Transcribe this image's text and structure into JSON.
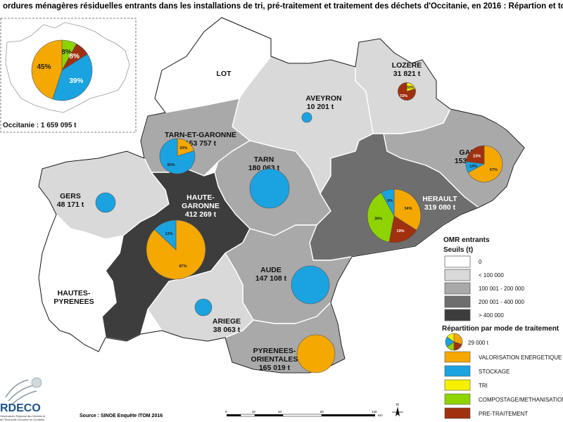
{
  "title": "ordures ménagères résiduelles entrants dans les installations de tri, pré-traitement et traitement des déchets d'Occitanie, en 2016 : Répartion et tonna",
  "colors": {
    "valorisation": "#f5a800",
    "stockage": "#1aa3e0",
    "tri": "#f5f000",
    "compostage": "#8fd400",
    "pretraitement": "#a1300f",
    "class0": "#ffffff",
    "class1": "#d9d9d9",
    "class2": "#a9a9a9",
    "class3": "#6e6e6e",
    "class4": "#3d3d3d"
  },
  "inset": {
    "total_label": "Occitanie : 1 659 095 t",
    "shares": {
      "valorisation": 45,
      "stockage": 39,
      "compostage": 8,
      "pretraitement": 8
    },
    "labels": [
      "45%",
      "39%",
      "8%",
      "8%"
    ]
  },
  "departments": {
    "lot": {
      "name": "LOT"
    },
    "aveyron": {
      "name": "AVEYRON",
      "tonnage": "10 201 t",
      "tonnage_value": 10201
    },
    "lozere": {
      "name": "LOZERE",
      "tonnage": "31 821 t",
      "tonnage_value": 31821,
      "pie_labels": [
        "20%",
        "72%"
      ]
    },
    "tarn_et_garonne": {
      "name": "TARN-ET-GARONNE",
      "tonnage": "153 757 t",
      "tonnage_value": 153757,
      "pie_labels": [
        "20%",
        "80%"
      ]
    },
    "tarn": {
      "name": "TARN",
      "tonnage": "180 063 t",
      "tonnage_value": 180063
    },
    "gard": {
      "name": "GARD",
      "tonnage": "153 544 t",
      "tonnage_value": 153544,
      "pie_labels": [
        "67%",
        "10%",
        "23%"
      ]
    },
    "gers": {
      "name": "GERS",
      "tonnage": "48 171 t",
      "tonnage_value": 48171
    },
    "haute_garonne": {
      "name_line1": "HAUTE-",
      "name_line2": "GARONNE",
      "tonnage": "412 269 t",
      "tonnage_value": 412269,
      "pie_labels": [
        "87%",
        "13%"
      ]
    },
    "herault": {
      "name": "HERAULT",
      "tonnage": "319 080 t",
      "tonnage_value": 319080,
      "pie_labels": [
        "34%",
        "8%",
        "39%",
        "19%"
      ]
    },
    "hautes_pyrenees": {
      "name_line1": "HAUTES-",
      "name_line2": "PYRENEES"
    },
    "aude": {
      "name": "AUDE",
      "tonnage": "147 108 t",
      "tonnage_value": 147108
    },
    "ariege": {
      "name": "ARIEGE",
      "tonnage": "38 063 t",
      "tonnage_value": 38063
    },
    "pyrenees_orientales": {
      "name_line1": "PYRENEES-",
      "name_line2": "ORIENTALES",
      "tonnage": "165 019 t",
      "tonnage_value": 165019
    }
  },
  "legend": {
    "title": "OMR entrants",
    "thresholds_title": "Seuils (t)",
    "classes": [
      "0",
      "< 100 000",
      "100 001 - 200 000",
      "200 001 - 400 000",
      "> 400 000"
    ],
    "modes_title": "Répartition par mode de traitement",
    "reference_size": "29 000 t",
    "modes": [
      "VALORISATION ENERGETIQUE",
      "STOCKAGE",
      "TRI",
      "COMPOSTAGE/METHANISATION",
      "PRE-TRAITEMENT"
    ]
  },
  "scale": {
    "ticks": [
      "0",
      "20",
      "40",
      "80",
      "120"
    ],
    "unit": "Km"
  },
  "source": "Source : SINOE Enquête ITOM 2016",
  "logo": {
    "name": "RDECO",
    "line1": "Observatoire Régional des Déchets et",
    "line2": "de l'Économie Circulaire en Occitanie"
  },
  "compass": "N"
}
